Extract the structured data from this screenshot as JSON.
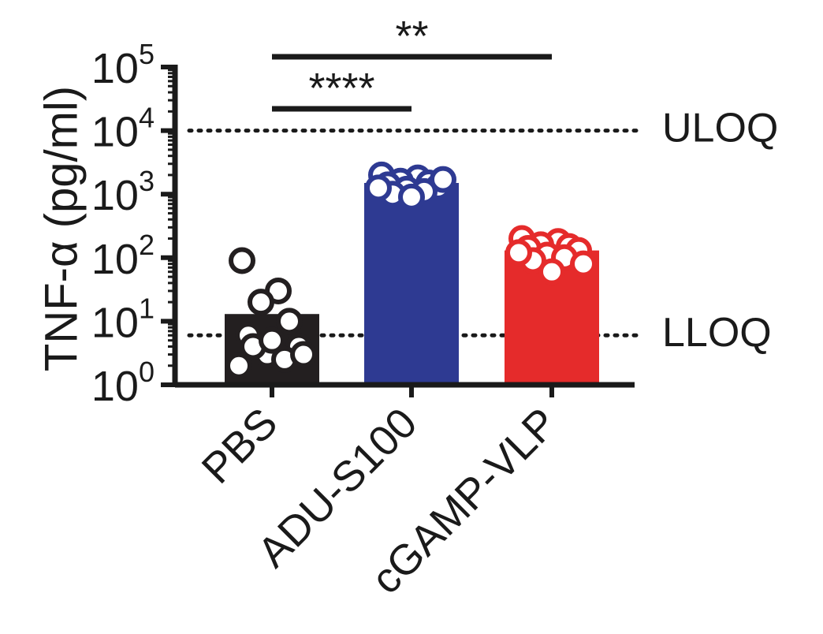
{
  "chart_data": {
    "type": "bar",
    "ylabel": "TNF-α (pg/ml)",
    "y_scale": "log10",
    "ylim": [
      1,
      100000
    ],
    "y_ticks": [
      {
        "value": 1,
        "base": "10",
        "exp": "0"
      },
      {
        "value": 10,
        "base": "10",
        "exp": "1"
      },
      {
        "value": 100,
        "base": "10",
        "exp": "2"
      },
      {
        "value": 1000,
        "base": "10",
        "exp": "3"
      },
      {
        "value": 10000,
        "base": "10",
        "exp": "4"
      },
      {
        "value": 100000,
        "base": "10",
        "exp": "5"
      }
    ],
    "categories": [
      "PBS",
      "ADU-S100",
      "cGAMP-VLP"
    ],
    "bar_colors": [
      "#231f20",
      "#2e3a92",
      "#e52b2b"
    ],
    "values": [
      13,
      1500,
      130
    ],
    "points": [
      [
        90,
        30,
        20,
        10,
        6,
        4,
        3,
        2.5,
        4,
        3,
        5,
        2
      ],
      [
        2000,
        1800,
        1600,
        1500,
        1400,
        1300,
        1200,
        1100,
        1000,
        1700,
        900,
        1250
      ],
      [
        200,
        180,
        160,
        150,
        140,
        130,
        110,
        100,
        90,
        80,
        60,
        120
      ]
    ],
    "reference_lines": [
      {
        "label": "ULOQ",
        "value": 10000
      },
      {
        "label": "LLOQ",
        "value": 6
      }
    ],
    "significance": [
      {
        "from": "PBS",
        "to": "ADU-S100",
        "label": "****"
      },
      {
        "from": "PBS",
        "to": "cGAMP-VLP",
        "label": "**"
      }
    ],
    "grid": false,
    "legend": "none"
  }
}
